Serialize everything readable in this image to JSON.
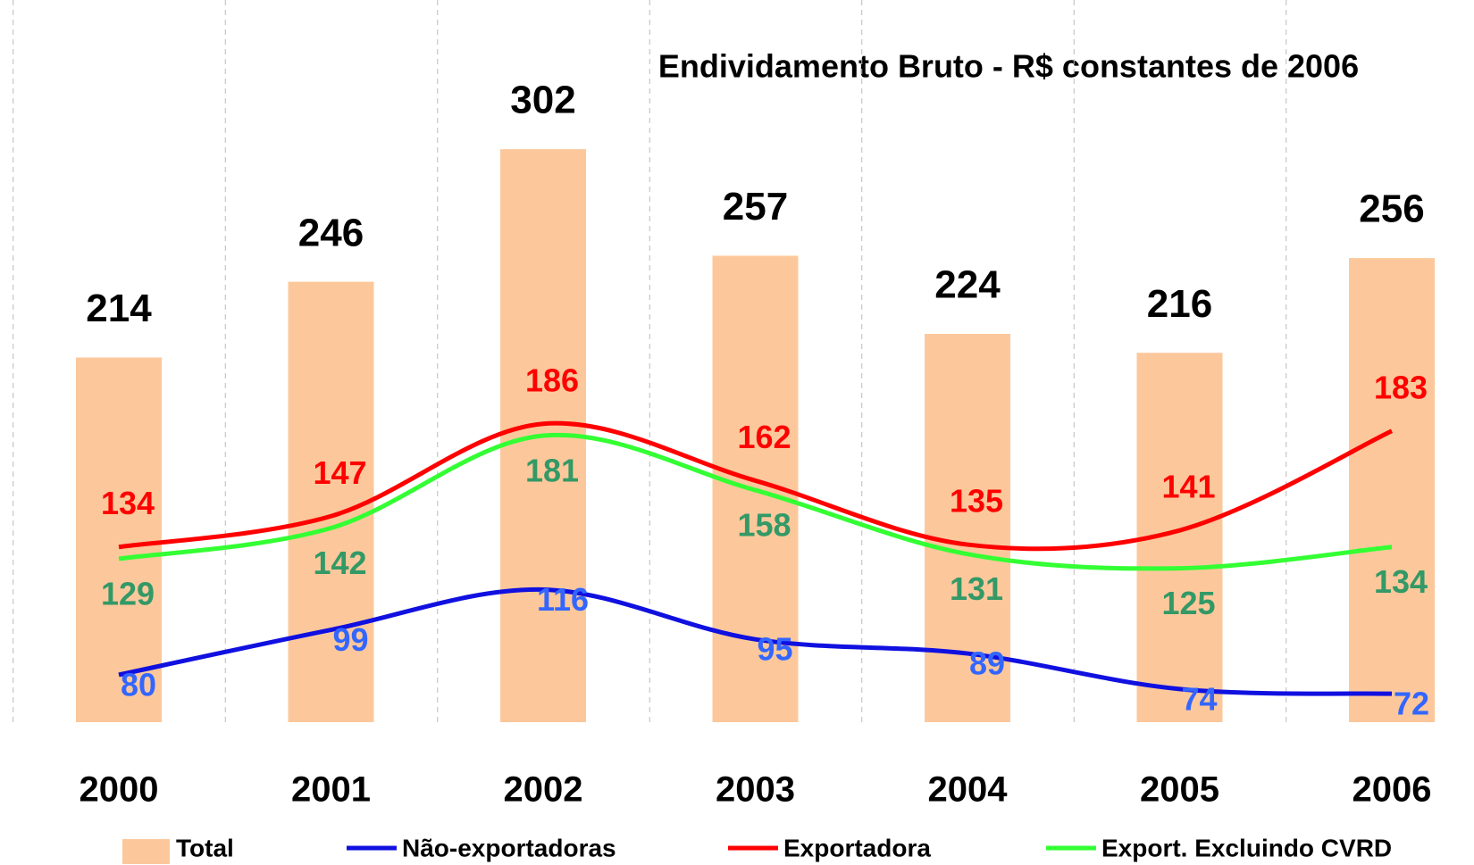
{
  "chart_data": {
    "type": "bar-line",
    "title": "Endividamento Bruto - R$ constantes de 2006",
    "categories": [
      "2000",
      "2001",
      "2002",
      "2003",
      "2004",
      "2005",
      "2006"
    ],
    "ylim": [
      60,
      365
    ],
    "grid": "vertical-dashed",
    "series": [
      {
        "name": "Total",
        "kind": "bar",
        "color": "#fcc89b",
        "label_color": "#000000",
        "values": [
          214,
          246,
          302,
          257,
          224,
          216,
          256
        ]
      },
      {
        "name": "Não-exportadoras",
        "kind": "line",
        "color": "#1010e0",
        "label_color": "#3366ff",
        "values": [
          80,
          99,
          116,
          95,
          89,
          74,
          72
        ]
      },
      {
        "name": "Exportadora",
        "kind": "line",
        "color": "#ff0000",
        "label_color": "#ff0000",
        "values": [
          134,
          147,
          186,
          162,
          135,
          141,
          183
        ]
      },
      {
        "name": "Export. Excluindo CVRD",
        "kind": "line",
        "color": "#33ff33",
        "label_color": "#339966",
        "values": [
          129,
          142,
          181,
          158,
          131,
          125,
          134
        ]
      }
    ]
  }
}
